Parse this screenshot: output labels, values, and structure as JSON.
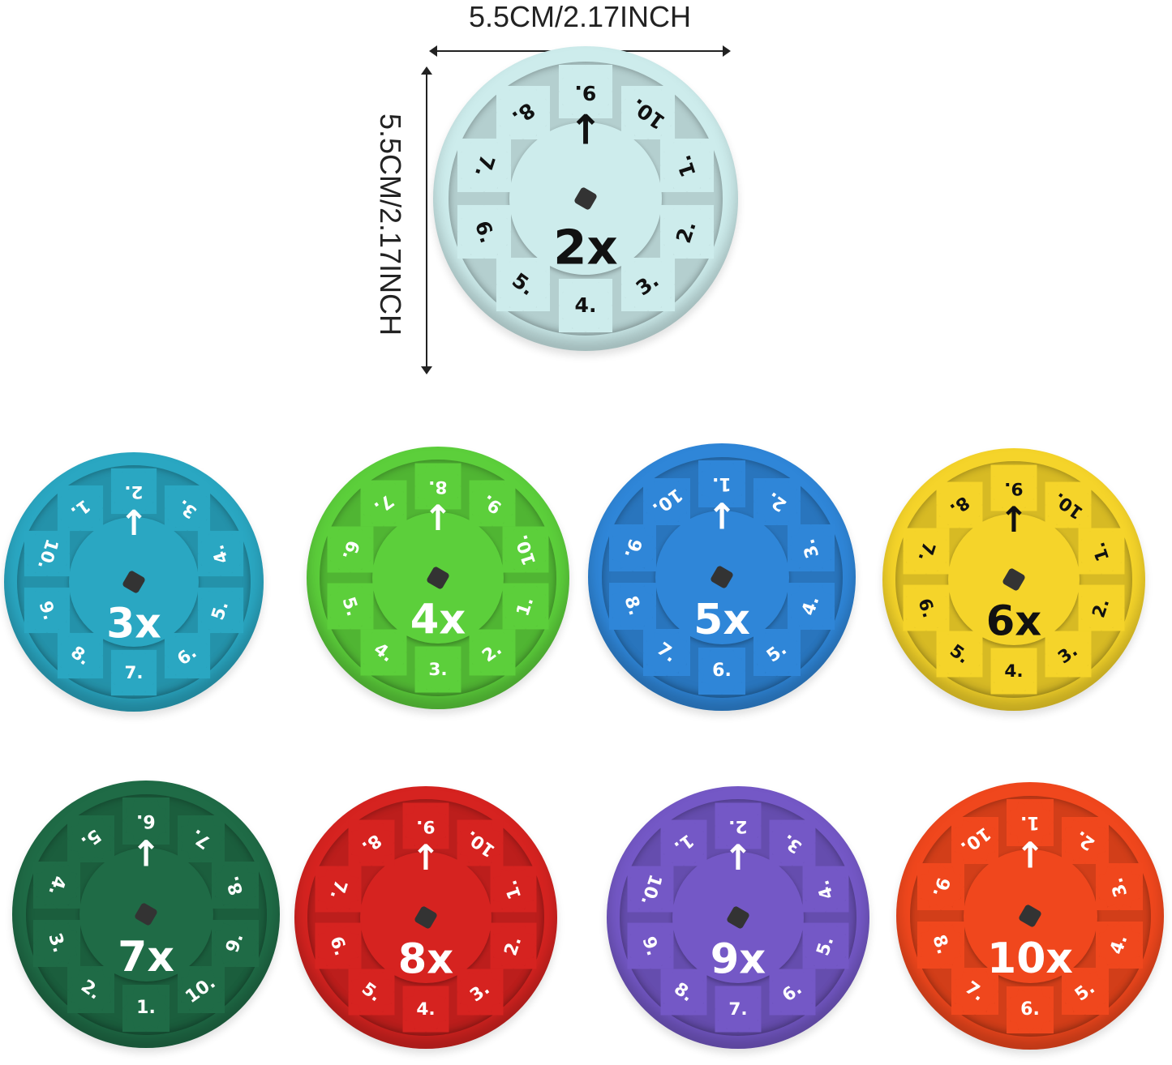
{
  "dimensions": {
    "width_label": "5.5CM/2.17INCH",
    "height_label": "5.5CM/2.17INCH"
  },
  "discs": [
    {
      "label": "2x",
      "color": "#cdecec",
      "text_color": "#111111",
      "numbers": [
        "9.",
        "10.",
        "1.",
        "2.",
        "3.",
        "4.",
        "5.",
        "6.",
        "7.",
        "8."
      ]
    },
    {
      "label": "3x",
      "color": "#2aa7c2",
      "text_color": "#ffffff",
      "numbers": [
        "2.",
        "3.",
        "4.",
        "5.",
        "6.",
        "7.",
        "8.",
        "9.",
        "10.",
        "1."
      ]
    },
    {
      "label": "4x",
      "color": "#5ccf3b",
      "text_color": "#ffffff",
      "numbers": [
        "8.",
        "9.",
        "10.",
        "1.",
        "2.",
        "3.",
        "4.",
        "5.",
        "6.",
        "7."
      ]
    },
    {
      "label": "5x",
      "color": "#2f86d8",
      "text_color": "#ffffff",
      "numbers": [
        "1.",
        "2.",
        "3.",
        "4.",
        "5.",
        "6.",
        "7.",
        "8.",
        "9.",
        "10."
      ]
    },
    {
      "label": "6x",
      "color": "#f5d42a",
      "text_color": "#111111",
      "numbers": [
        "9.",
        "10.",
        "1.",
        "2.",
        "3.",
        "4.",
        "5.",
        "6.",
        "7.",
        "8."
      ]
    },
    {
      "label": "7x",
      "color": "#1f6b46",
      "text_color": "#ffffff",
      "numbers": [
        "6.",
        "7.",
        "8.",
        "9.",
        "10.",
        "1.",
        "2.",
        "3.",
        "4.",
        "5."
      ]
    },
    {
      "label": "8x",
      "color": "#d62320",
      "text_color": "#ffffff",
      "numbers": [
        "9.",
        "10.",
        "1.",
        "2.",
        "3.",
        "4.",
        "5.",
        "6.",
        "7.",
        "8."
      ]
    },
    {
      "label": "9x",
      "color": "#7458c6",
      "text_color": "#ffffff",
      "numbers": [
        "2.",
        "3.",
        "4.",
        "5.",
        "6.",
        "7.",
        "8.",
        "9.",
        "10.",
        "1."
      ]
    },
    {
      "label": "10x",
      "color": "#f0471d",
      "text_color": "#ffffff",
      "numbers": [
        "1.",
        "2.",
        "3.",
        "4.",
        "5.",
        "6.",
        "7.",
        "8.",
        "9.",
        "10."
      ]
    }
  ]
}
